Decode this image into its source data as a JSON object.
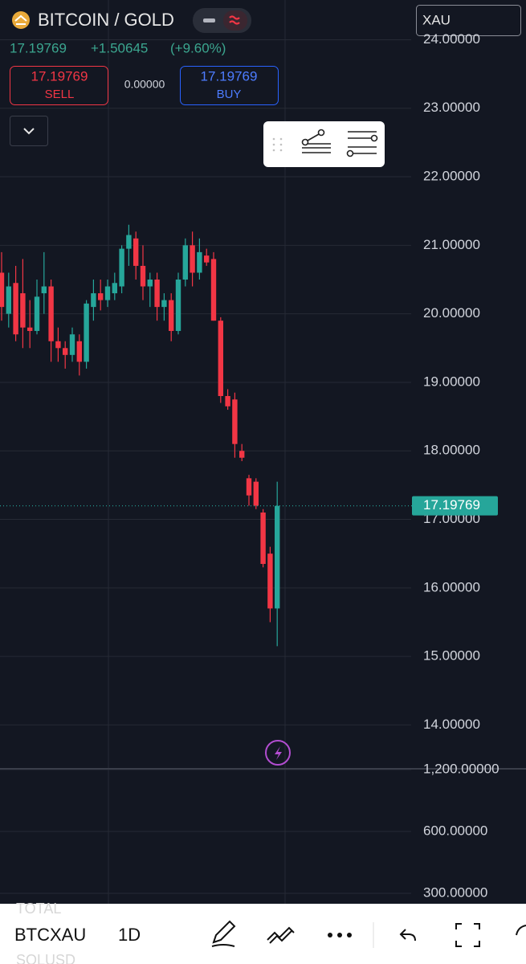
{
  "header": {
    "symbol": "BITCOIN / GOLD",
    "price": "17.19769",
    "change": "+1.50645",
    "change_pct": "(+9.60%)",
    "sell_price": "17.19769",
    "sell_label": "SELL",
    "spread": "0.00000",
    "buy_price": "17.19769",
    "buy_label": "BUY",
    "search": "XAU"
  },
  "chart_data": [
    {
      "type": "candlestick",
      "open": [
        20.6,
        20.0,
        20.45,
        20.3,
        19.8,
        19.75,
        20.3,
        20.4,
        19.6,
        19.5,
        19.4,
        19.6,
        19.3,
        20.1,
        20.3,
        20.2,
        20.3,
        20.4,
        20.95,
        21.1,
        20.7,
        20.4,
        20.5,
        20.1,
        20.2,
        19.75,
        20.5,
        21.0,
        20.6,
        20.85,
        20.8,
        19.9,
        18.8,
        18.75,
        18.0,
        17.6,
        17.55,
        17.1,
        16.5,
        15.7
      ],
      "high": [
        20.9,
        20.6,
        20.7,
        20.8,
        20.2,
        20.5,
        20.9,
        20.5,
        19.8,
        19.6,
        19.8,
        19.7,
        20.2,
        20.5,
        20.5,
        20.5,
        20.6,
        21.0,
        21.3,
        21.2,
        21.0,
        20.6,
        20.6,
        20.3,
        20.3,
        20.6,
        21.1,
        21.2,
        21.1,
        20.95,
        20.9,
        19.95,
        18.9,
        18.85,
        18.1,
        17.65,
        17.6,
        17.15,
        16.6,
        17.55
      ],
      "low": [
        19.9,
        19.8,
        19.6,
        19.5,
        19.5,
        19.7,
        20.0,
        19.3,
        19.3,
        19.2,
        19.3,
        19.1,
        19.2,
        19.9,
        20.05,
        20.1,
        20.2,
        20.3,
        20.7,
        20.5,
        20.2,
        20.1,
        19.9,
        19.9,
        19.6,
        19.7,
        20.4,
        20.4,
        20.5,
        20.7,
        19.9,
        18.7,
        18.6,
        17.9,
        17.85,
        17.2,
        17.15,
        16.3,
        15.5,
        15.15
      ],
      "close": [
        20.1,
        20.4,
        19.7,
        19.8,
        19.75,
        20.25,
        20.4,
        19.6,
        19.5,
        19.4,
        19.7,
        19.3,
        20.15,
        20.3,
        20.2,
        20.4,
        20.45,
        20.95,
        21.15,
        20.7,
        20.4,
        20.5,
        20.1,
        20.2,
        19.75,
        20.5,
        21.0,
        20.6,
        20.9,
        20.75,
        19.9,
        18.8,
        18.65,
        18.1,
        17.9,
        17.35,
        17.2,
        16.35,
        15.7,
        17.19769
      ],
      "up_color": "#26a69a",
      "down_color": "#f23645",
      "ylim": [
        13.36,
        24.58
      ],
      "yticks": [
        {
          "value": 14,
          "label": "14.00000"
        },
        {
          "value": 15,
          "label": "15.00000"
        },
        {
          "value": 16,
          "label": "16.00000"
        },
        {
          "value": 17,
          "label": "17.00000"
        },
        {
          "value": 18,
          "label": "18.00000"
        },
        {
          "value": 19,
          "label": "19.00000"
        },
        {
          "value": 20,
          "label": "20.00000"
        },
        {
          "value": 21,
          "label": "21.00000"
        },
        {
          "value": 22,
          "label": "22.00000"
        },
        {
          "value": 23,
          "label": "23.00000"
        },
        {
          "value": 24,
          "label": "24.00000"
        }
      ],
      "last_price": {
        "value": 17.19769,
        "label": "17.19769"
      },
      "grid": true
    },
    {
      "type": "line",
      "log_scale": true,
      "ylim": [
        267,
        1200
      ],
      "yticks": [
        {
          "value": 300,
          "label": "300.00000"
        },
        {
          "value": 600,
          "label": "600.00000"
        },
        {
          "value": 1200,
          "label": "1,200.00000"
        }
      ],
      "grid": true
    }
  ],
  "toolbar": {
    "ghost_above": "TOTAL",
    "symbol": "BTCXAU",
    "ghost_below": "SOLUSD",
    "interval": "1D"
  }
}
